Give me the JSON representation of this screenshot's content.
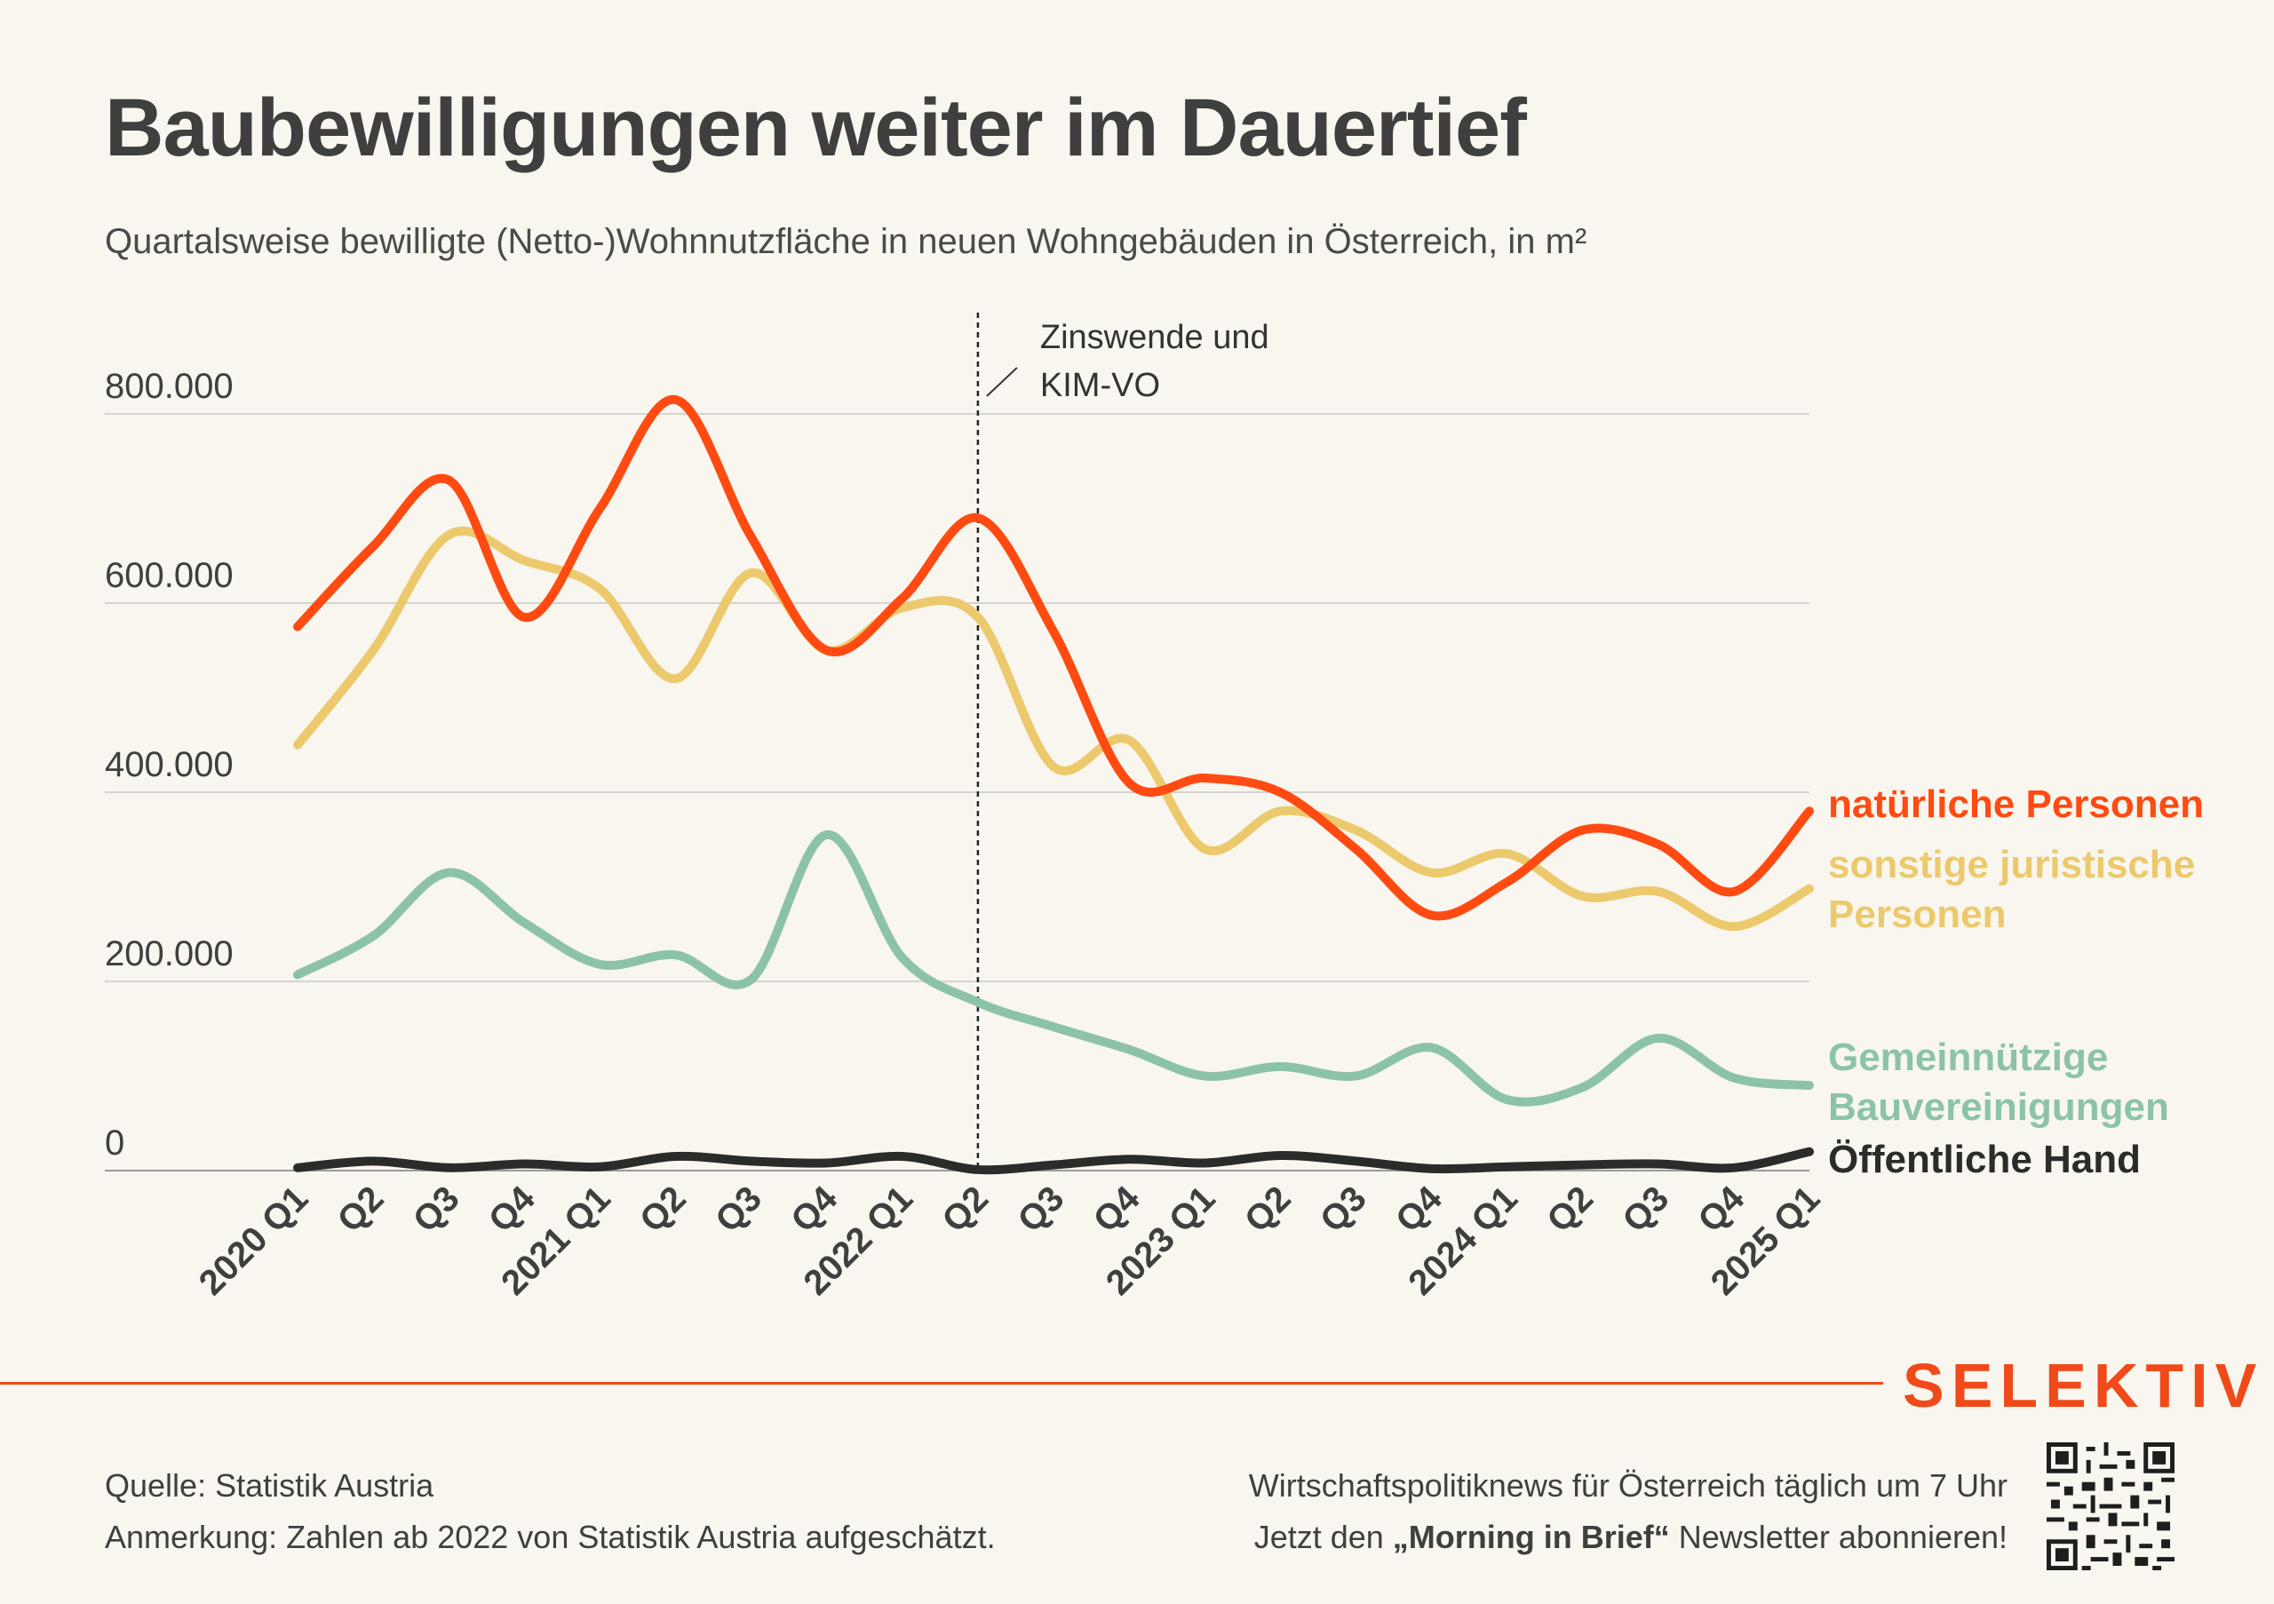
{
  "title": "Baubewilligungen weiter im Dauertief",
  "subtitle": "Quartalsweise bewilligte (Netto-)Wohnnutzfläche in neuen Wohngebäuden in Österreich, in m²",
  "brand": "SELEKTIV",
  "footer": {
    "source": "Quelle: Statistik Austria",
    "note": "Anmerkung: Zahlen ab 2022 von Statistik Austria aufgeschätzt.",
    "promo_line1": "Wirtschaftspolitiknews für Österreich täglich um 7 Uhr",
    "promo_line2_pre": "Jetzt den ",
    "promo_line2_bold": "„Morning in Brief“",
    "promo_line2_post": " Newsletter abonnieren!"
  },
  "chart_data": {
    "type": "line",
    "categories": [
      "2020 Q1",
      "Q2",
      "Q3",
      "Q4",
      "2021 Q1",
      "Q2",
      "Q3",
      "Q4",
      "2022 Q1",
      "Q2",
      "Q3",
      "Q4",
      "2023 Q1",
      "Q2",
      "Q3",
      "Q4",
      "2024 Q1",
      "Q2",
      "Q3",
      "Q4",
      "2025 Q1"
    ],
    "y_ticks": [
      0,
      200000,
      400000,
      600000,
      800000
    ],
    "y_tick_labels": [
      "0",
      "200.000",
      "400.000",
      "600.000",
      "800.000"
    ],
    "ylim": [
      0,
      800000
    ],
    "grid": true,
    "annotation": {
      "category_index": 9,
      "lines": [
        "Zinswende und",
        "KIM-VO"
      ]
    },
    "series": [
      {
        "name": "natürliche Personen",
        "color": "#ff4a12",
        "values": [
          575000,
          660000,
          730000,
          585000,
          700000,
          815000,
          670000,
          550000,
          605000,
          690000,
          570000,
          410000,
          415000,
          400000,
          340000,
          270000,
          305000,
          360000,
          345000,
          295000,
          380000
        ]
      },
      {
        "name_lines": [
          "sonstige juristische",
          "Personen"
        ],
        "color": "#ecc96c",
        "values": [
          450000,
          550000,
          672000,
          645000,
          615000,
          520000,
          632000,
          550000,
          595000,
          585000,
          427000,
          455000,
          340000,
          380000,
          360000,
          315000,
          335000,
          290000,
          295000,
          258000,
          298000
        ]
      },
      {
        "name_lines": [
          "Gemeinnützige",
          "Bauvereinigungen"
        ],
        "color": "#8cc3a6",
        "values": [
          207000,
          248000,
          315000,
          262000,
          218000,
          228000,
          202000,
          355000,
          225000,
          178000,
          152000,
          128000,
          100000,
          110000,
          100000,
          130000,
          75000,
          88000,
          140000,
          98000,
          90000
        ]
      },
      {
        "name": "Öffentliche Hand",
        "color": "#2b2b2b",
        "values": [
          3000,
          10000,
          3000,
          7000,
          4000,
          15000,
          10000,
          8000,
          15000,
          1000,
          6000,
          12000,
          8000,
          16000,
          10000,
          2000,
          4000,
          6000,
          7000,
          3000,
          20000
        ]
      }
    ]
  }
}
